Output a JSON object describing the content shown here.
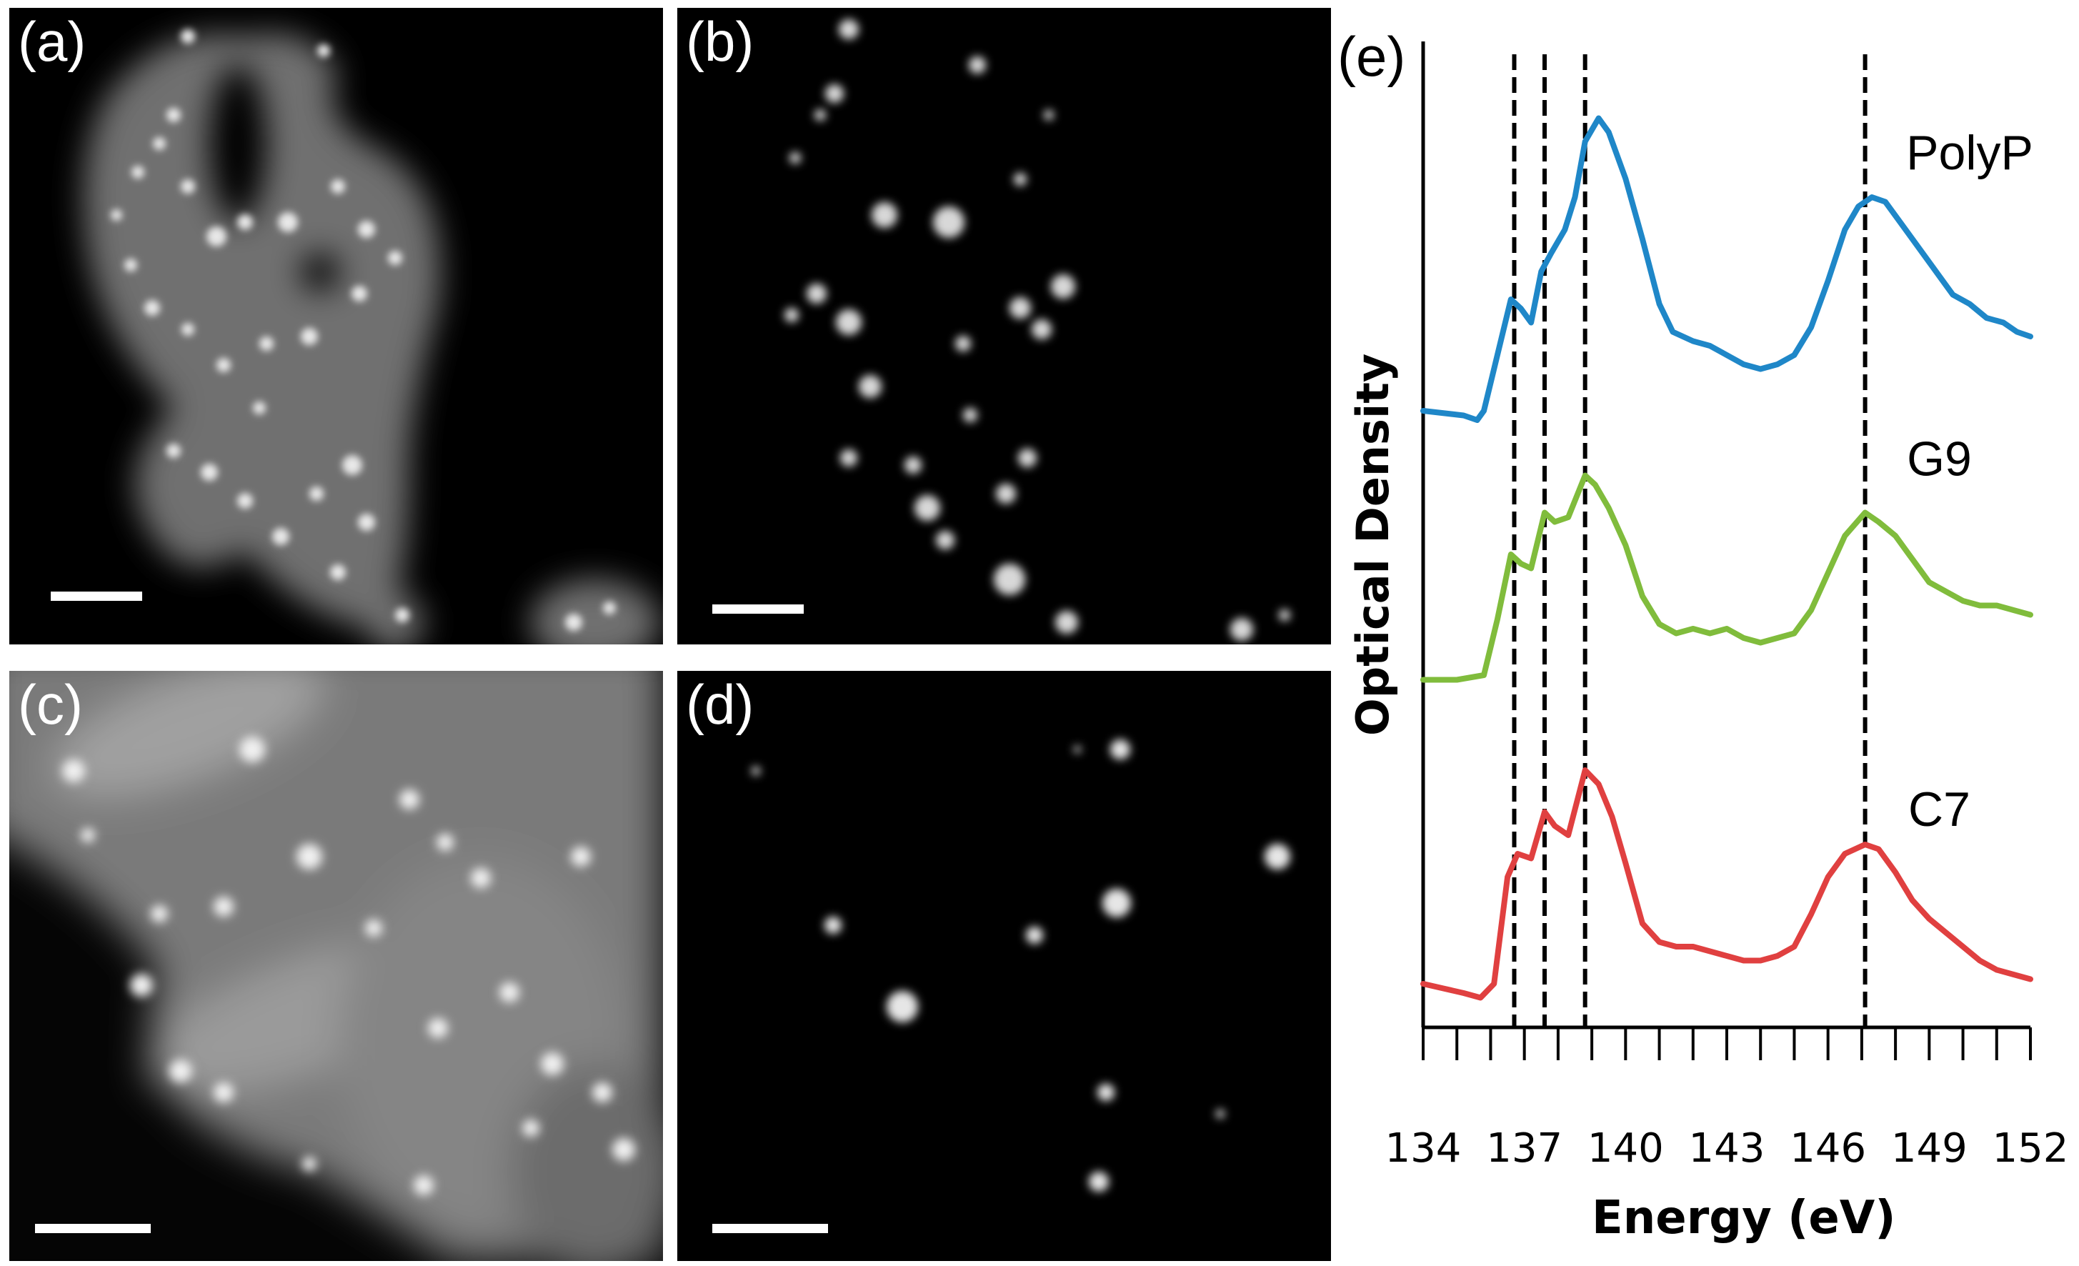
{
  "panels": {
    "a": {
      "label": "(a)"
    },
    "b": {
      "label": "(b)"
    },
    "c": {
      "label": "(c)"
    },
    "d": {
      "label": "(d)"
    },
    "e": {
      "label": "(e)"
    }
  },
  "chart_data": {
    "type": "line",
    "title": "",
    "xlabel": "Energy (eV)",
    "ylabel": "Optical Density",
    "xlim": [
      134,
      152
    ],
    "x_ticks": [
      134,
      137,
      140,
      143,
      146,
      149,
      152
    ],
    "y_ticks_shown": false,
    "grid": false,
    "reference_lines_x": [
      136.7,
      137.6,
      138.8,
      147.1
    ],
    "series": [
      {
        "name": "PolyP",
        "color": "#1f87c8",
        "x": [
          134,
          135.2,
          135.6,
          135.8,
          136.2,
          136.6,
          136.9,
          137.2,
          137.5,
          137.8,
          138.2,
          138.5,
          138.8,
          139.2,
          139.5,
          140.0,
          140.5,
          141.0,
          141.4,
          142.0,
          142.5,
          143.0,
          143.5,
          144.0,
          144.5,
          145.0,
          145.5,
          146.0,
          146.5,
          146.9,
          147.3,
          147.7,
          148.2,
          148.7,
          149.2,
          149.7,
          150.2,
          150.7,
          151.2,
          151.6,
          152
        ],
        "y": [
          0.1,
          0.09,
          0.08,
          0.1,
          0.22,
          0.34,
          0.32,
          0.29,
          0.4,
          0.44,
          0.49,
          0.56,
          0.68,
          0.73,
          0.7,
          0.6,
          0.47,
          0.33,
          0.27,
          0.25,
          0.24,
          0.22,
          0.2,
          0.19,
          0.2,
          0.22,
          0.28,
          0.38,
          0.49,
          0.54,
          0.56,
          0.55,
          0.5,
          0.45,
          0.4,
          0.35,
          0.33,
          0.3,
          0.29,
          0.27,
          0.26
        ]
      },
      {
        "name": "G9",
        "color": "#80bc3c",
        "x": [
          134,
          135.0,
          135.8,
          136.2,
          136.6,
          136.9,
          137.2,
          137.6,
          137.9,
          138.3,
          138.8,
          139.1,
          139.5,
          140.0,
          140.5,
          141.0,
          141.5,
          142.0,
          142.5,
          143.0,
          143.5,
          144.0,
          144.5,
          145.0,
          145.5,
          146.0,
          146.5,
          147.1,
          147.5,
          148.0,
          148.5,
          149.0,
          149.5,
          150.0,
          150.5,
          151.0,
          151.5,
          152
        ],
        "y": [
          0.09,
          0.09,
          0.1,
          0.22,
          0.36,
          0.34,
          0.33,
          0.45,
          0.43,
          0.44,
          0.53,
          0.51,
          0.46,
          0.38,
          0.27,
          0.21,
          0.19,
          0.2,
          0.19,
          0.2,
          0.18,
          0.17,
          0.18,
          0.19,
          0.24,
          0.32,
          0.4,
          0.45,
          0.43,
          0.4,
          0.35,
          0.3,
          0.28,
          0.26,
          0.25,
          0.25,
          0.24,
          0.23
        ]
      },
      {
        "name": "C7",
        "color": "#e04040",
        "x": [
          134,
          134.6,
          135.2,
          135.7,
          136.1,
          136.5,
          136.8,
          137.2,
          137.6,
          137.9,
          138.3,
          138.8,
          139.2,
          139.6,
          140.0,
          140.5,
          141.0,
          141.5,
          142.0,
          142.5,
          143.0,
          143.5,
          144.0,
          144.5,
          145.0,
          145.5,
          146.0,
          146.5,
          147.1,
          147.5,
          148.0,
          148.5,
          149.0,
          149.5,
          150.0,
          150.5,
          151.0,
          151.5,
          152
        ],
        "y": [
          0.12,
          0.11,
          0.1,
          0.09,
          0.12,
          0.35,
          0.4,
          0.39,
          0.49,
          0.46,
          0.44,
          0.58,
          0.55,
          0.48,
          0.38,
          0.25,
          0.21,
          0.2,
          0.2,
          0.19,
          0.18,
          0.17,
          0.17,
          0.18,
          0.2,
          0.27,
          0.35,
          0.4,
          0.42,
          0.41,
          0.36,
          0.3,
          0.26,
          0.23,
          0.2,
          0.17,
          0.15,
          0.14,
          0.13
        ]
      }
    ]
  }
}
